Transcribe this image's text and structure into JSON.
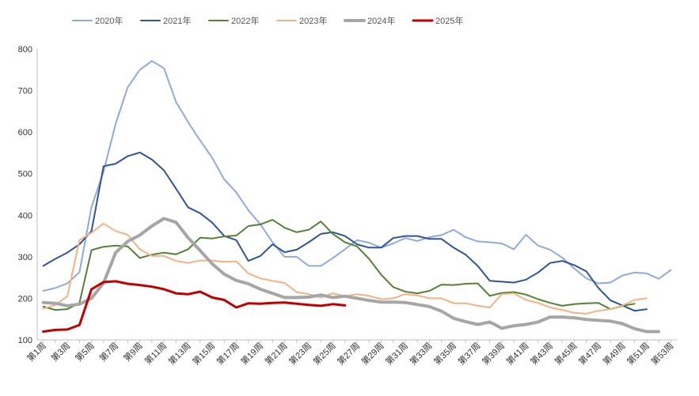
{
  "chart_data": {
    "type": "line",
    "title": "",
    "xlabel": "",
    "ylabel": "",
    "ylim": [
      100,
      800
    ],
    "y_ticks": [
      100,
      200,
      300,
      400,
      500,
      600,
      700,
      800
    ],
    "x_labels": [
      "第1周",
      "第3周",
      "第5周",
      "第7周",
      "第9周",
      "第11周",
      "第13周",
      "第15周",
      "第17周",
      "第19周",
      "第21周",
      "第23周",
      "第25周",
      "第27周",
      "第29周",
      "第31周",
      "第33周",
      "第35周",
      "第37周",
      "第39周",
      "第41周",
      "第43周",
      "第45周",
      "第47周",
      "第49周",
      "第51周",
      "第53周"
    ],
    "x_label_weeks": [
      1,
      3,
      5,
      7,
      9,
      11,
      13,
      15,
      17,
      19,
      21,
      23,
      25,
      27,
      29,
      31,
      33,
      35,
      37,
      39,
      41,
      43,
      45,
      47,
      49,
      51,
      53
    ],
    "x_range": [
      0.5,
      53.5
    ],
    "grid": false,
    "legend_position": "top",
    "series": [
      {
        "name": "2020年",
        "color": "#8FAADC",
        "width": 2,
        "x": [
          1,
          2,
          3,
          4,
          5,
          6,
          7,
          8,
          9,
          10,
          11,
          12,
          13,
          14,
          15,
          16,
          17,
          18,
          19,
          20,
          21,
          22,
          23,
          24,
          25,
          26,
          27,
          28,
          29,
          30,
          31,
          32,
          33,
          34,
          35,
          36,
          37,
          38,
          39,
          40,
          41,
          42,
          43,
          44,
          45,
          46,
          47,
          48,
          49,
          50,
          51,
          52,
          53
        ],
        "values": [
          218,
          225,
          236,
          263,
          420,
          505,
          620,
          708,
          750,
          771,
          754,
          673,
          624,
          580,
          538,
          486,
          455,
          412,
          378,
          335,
          300,
          300,
          278,
          278,
          297,
          318,
          340,
          334,
          322,
          332,
          345,
          338,
          347,
          352,
          365,
          347,
          337,
          335,
          332,
          318,
          353,
          327,
          317,
          298,
          272,
          248,
          236,
          238,
          255,
          262,
          260,
          247,
          268
        ]
      },
      {
        "name": "2021年",
        "color": "#2F5597",
        "width": 2,
        "x": [
          1,
          2,
          3,
          4,
          5,
          6,
          7,
          8,
          9,
          10,
          11,
          12,
          13,
          14,
          15,
          16,
          17,
          18,
          19,
          20,
          21,
          22,
          23,
          24,
          25,
          26,
          27,
          28,
          29,
          30,
          31,
          32,
          33,
          34,
          35,
          36,
          37,
          38,
          39,
          40,
          41,
          42,
          43,
          44,
          45,
          46,
          47,
          48,
          49,
          50,
          51
        ],
        "values": [
          278,
          295,
          310,
          330,
          362,
          518,
          524,
          542,
          551,
          534,
          508,
          464,
          419,
          405,
          382,
          350,
          340,
          290,
          302,
          330,
          311,
          317,
          335,
          355,
          359,
          350,
          330,
          322,
          322,
          345,
          350,
          350,
          343,
          343,
          322,
          305,
          278,
          242,
          240,
          238,
          245,
          262,
          285,
          290,
          280,
          265,
          225,
          195,
          183,
          170,
          174
        ]
      },
      {
        "name": "2022年",
        "color": "#548235",
        "width": 2,
        "x": [
          1,
          2,
          3,
          4,
          5,
          6,
          7,
          8,
          9,
          10,
          11,
          12,
          13,
          14,
          15,
          16,
          17,
          18,
          19,
          20,
          21,
          22,
          23,
          24,
          25,
          26,
          27,
          28,
          29,
          30,
          31,
          32,
          33,
          34,
          35,
          36,
          37,
          38,
          39,
          40,
          41,
          42,
          43,
          44,
          45,
          46,
          47,
          48,
          49,
          50
        ],
        "values": [
          180,
          172,
          174,
          189,
          316,
          324,
          327,
          325,
          297,
          305,
          310,
          306,
          318,
          346,
          344,
          349,
          351,
          374,
          378,
          389,
          370,
          359,
          365,
          385,
          355,
          335,
          325,
          295,
          257,
          227,
          216,
          212,
          218,
          233,
          232,
          235,
          236,
          206,
          213,
          215,
          209,
          198,
          189,
          182,
          186,
          188,
          189,
          174,
          182,
          187
        ]
      },
      {
        "name": "2023年",
        "color": "#F4B183",
        "width": 2,
        "x": [
          1,
          2,
          3,
          4,
          5,
          6,
          7,
          8,
          9,
          10,
          11,
          12,
          13,
          14,
          15,
          16,
          17,
          18,
          19,
          20,
          21,
          22,
          23,
          24,
          25,
          26,
          27,
          28,
          29,
          30,
          31,
          32,
          33,
          34,
          35,
          36,
          37,
          38,
          39,
          40,
          41,
          42,
          43,
          44,
          45,
          46,
          47,
          48,
          49,
          50,
          51
        ],
        "values": [
          175,
          184,
          205,
          340,
          358,
          380,
          362,
          353,
          318,
          302,
          302,
          290,
          285,
          291,
          291,
          288,
          289,
          260,
          248,
          242,
          237,
          215,
          210,
          202,
          212,
          205,
          210,
          206,
          198,
          200,
          210,
          207,
          200,
          200,
          188,
          188,
          182,
          178,
          210,
          212,
          196,
          189,
          178,
          172,
          165,
          163,
          170,
          174,
          183,
          196,
          200
        ]
      },
      {
        "name": "2024年",
        "color": "#A6A6A6",
        "width": 4,
        "x": [
          1,
          2,
          3,
          4,
          5,
          6,
          7,
          8,
          9,
          10,
          11,
          12,
          13,
          14,
          15,
          16,
          17,
          18,
          19,
          20,
          21,
          22,
          23,
          24,
          25,
          26,
          27,
          28,
          29,
          30,
          31,
          32,
          33,
          34,
          35,
          36,
          37,
          38,
          39,
          40,
          41,
          42,
          43,
          44,
          45,
          46,
          47,
          48,
          49,
          50,
          51,
          52
        ],
        "values": [
          190,
          188,
          182,
          186,
          200,
          237,
          310,
          337,
          352,
          374,
          392,
          383,
          346,
          315,
          283,
          258,
          243,
          235,
          222,
          212,
          202,
          202,
          203,
          208,
          202,
          205,
          200,
          195,
          191,
          191,
          190,
          185,
          180,
          169,
          152,
          144,
          137,
          143,
          128,
          134,
          137,
          143,
          155,
          155,
          153,
          149,
          147,
          145,
          139,
          127,
          120,
          120
        ]
      },
      {
        "name": "2025年",
        "color": "#C00000",
        "width": 3,
        "x": [
          1,
          2,
          3,
          4,
          5,
          6,
          7,
          8,
          9,
          10,
          11,
          12,
          13,
          14,
          15,
          16,
          17,
          18,
          19,
          20,
          21,
          22,
          23,
          24,
          25,
          26
        ],
        "values": [
          120,
          124,
          125,
          136,
          222,
          239,
          241,
          235,
          232,
          228,
          222,
          212,
          210,
          216,
          202,
          196,
          178,
          188,
          187,
          189,
          190,
          187,
          184,
          182,
          186,
          183
        ]
      }
    ]
  }
}
